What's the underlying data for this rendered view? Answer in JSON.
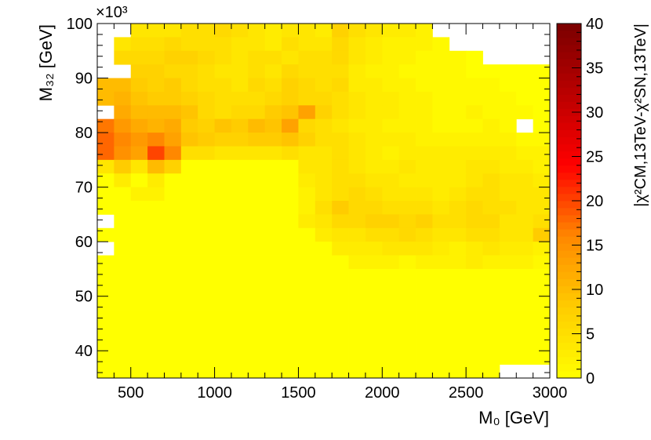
{
  "chart_data": {
    "type": "heatmap",
    "xlabel": "M₀ [GeV]",
    "ylabel": "M₃₂ [GeV]",
    "colorbar_label": "|χ²CM,13TeV-χ²SN,13TeV|",
    "y_multiplier_label": "×10³",
    "x_range": [
      300,
      3000
    ],
    "y_range": [
      35000,
      100000
    ],
    "x_ticks": [
      500,
      1000,
      1500,
      2000,
      2500,
      3000
    ],
    "x_tick_labels": [
      "500",
      "1000",
      "1500",
      "2000",
      "2500",
      "3000"
    ],
    "y_ticks": [
      40000,
      50000,
      60000,
      70000,
      80000,
      90000,
      100000
    ],
    "y_tick_labels": [
      "40",
      "50",
      "60",
      "70",
      "80",
      "90",
      "100"
    ],
    "z_range": [
      0,
      40
    ],
    "z_ticks": [
      0,
      5,
      10,
      15,
      20,
      25,
      30,
      35,
      40
    ],
    "z_tick_labels": [
      "0",
      "5",
      "10",
      "15",
      "20",
      "25",
      "30",
      "35",
      "40"
    ],
    "colormap_stops": [
      "#ffff00",
      "#ffcc00",
      "#ff8800",
      "#ff0000",
      "#bb0000",
      "#7a0000"
    ],
    "x_bin_edges": [
      300,
      400,
      500,
      600,
      700,
      800,
      900,
      1000,
      1100,
      1200,
      1300,
      1400,
      1500,
      1600,
      1700,
      1800,
      1900,
      2000,
      2100,
      2200,
      2300,
      2400,
      2500,
      2600,
      2700,
      2800,
      2900,
      3000
    ],
    "y_bin_edges": [
      35000,
      37500,
      40000,
      42500,
      45000,
      47500,
      50000,
      52500,
      55000,
      57500,
      60000,
      62500,
      65000,
      67500,
      70000,
      72500,
      75000,
      77500,
      80000,
      82500,
      85000,
      87500,
      90000,
      92500,
      95000,
      97500,
      100000
    ],
    "z_rows_top_to_bottom": [
      [
        null,
        null,
        4,
        4,
        4,
        5,
        5,
        6,
        5,
        4,
        3,
        4,
        4,
        3,
        7,
        5,
        4,
        3,
        3,
        2,
        null,
        null,
        null,
        null,
        null,
        null,
        null
      ],
      [
        null,
        4,
        5,
        5,
        6,
        5,
        5,
        5,
        4,
        4,
        3,
        5,
        4,
        4,
        6,
        4,
        3,
        2,
        2,
        2,
        1,
        null,
        null,
        null,
        null,
        null,
        null
      ],
      [
        null,
        6,
        6,
        6,
        7,
        7,
        6,
        5,
        4,
        5,
        5,
        4,
        5,
        5,
        6,
        4,
        3,
        2,
        2,
        1,
        1,
        1,
        0,
        null,
        null,
        null,
        null
      ],
      [
        null,
        null,
        7,
        7,
        6,
        6,
        5,
        4,
        4,
        5,
        4,
        6,
        5,
        5,
        5,
        3,
        2,
        2,
        1,
        1,
        1,
        1,
        0,
        0,
        0,
        0,
        0
      ],
      [
        10,
        10,
        8,
        7,
        8,
        6,
        5,
        5,
        4,
        6,
        5,
        7,
        6,
        5,
        6,
        3,
        3,
        2,
        2,
        1,
        1,
        1,
        1,
        1,
        0,
        0,
        0
      ],
      [
        10,
        11,
        9,
        8,
        8,
        7,
        6,
        5,
        5,
        5,
        6,
        7,
        6,
        6,
        5,
        4,
        3,
        3,
        2,
        2,
        1,
        1,
        1,
        1,
        1,
        0,
        0
      ],
      [
        null,
        12,
        10,
        10,
        10,
        9,
        6,
        5,
        6,
        6,
        8,
        9,
        13,
        7,
        5,
        4,
        3,
        3,
        2,
        2,
        1,
        1,
        2,
        1,
        1,
        1,
        0
      ],
      [
        17,
        14,
        12,
        11,
        12,
        8,
        7,
        9,
        8,
        10,
        9,
        13,
        6,
        5,
        4,
        3,
        3,
        2,
        2,
        2,
        1,
        1,
        1,
        2,
        1,
        null,
        0
      ],
      [
        18,
        16,
        14,
        16,
        13,
        9,
        8,
        7,
        7,
        8,
        8,
        9,
        7,
        5,
        5,
        4,
        3,
        3,
        3,
        2,
        2,
        2,
        2,
        2,
        2,
        1,
        1
      ],
      [
        18,
        15,
        13,
        20,
        16,
        5,
        5,
        4,
        4,
        4,
        4,
        5,
        4,
        4,
        5,
        4,
        3,
        2,
        3,
        3,
        3,
        3,
        3,
        3,
        3,
        2,
        2
      ],
      [
        4,
        8,
        4,
        10,
        7,
        0,
        0,
        0,
        0,
        0,
        0,
        0,
        4,
        4,
        5,
        4,
        3,
        3,
        4,
        3,
        3,
        3,
        4,
        4,
        3,
        3,
        2
      ],
      [
        0,
        3,
        0,
        3,
        0,
        0,
        0,
        0,
        0,
        0,
        0,
        0,
        3,
        4,
        5,
        5,
        4,
        4,
        3,
        3,
        3,
        3,
        4,
        5,
        4,
        4,
        3
      ],
      [
        0,
        0,
        2,
        2,
        0,
        0,
        0,
        0,
        0,
        0,
        0,
        0,
        2,
        4,
        5,
        6,
        5,
        4,
        4,
        4,
        3,
        4,
        5,
        5,
        4,
        4,
        4
      ],
      [
        0,
        0,
        0,
        0,
        0,
        0,
        0,
        0,
        0,
        0,
        0,
        0,
        2,
        5,
        8,
        6,
        6,
        5,
        5,
        5,
        4,
        5,
        6,
        5,
        5,
        4,
        4
      ],
      [
        null,
        0,
        0,
        0,
        0,
        0,
        0,
        0,
        0,
        0,
        0,
        0,
        3,
        4,
        6,
        6,
        7,
        7,
        6,
        7,
        5,
        5,
        6,
        6,
        4,
        4,
        5
      ],
      [
        0,
        0,
        0,
        0,
        0,
        0,
        0,
        0,
        0,
        0,
        0,
        0,
        0,
        3,
        4,
        4,
        5,
        5,
        6,
        5,
        4,
        4,
        5,
        5,
        4,
        4,
        8
      ],
      [
        null,
        0,
        0,
        0,
        0,
        0,
        0,
        0,
        0,
        0,
        0,
        0,
        0,
        0,
        3,
        3,
        3,
        4,
        4,
        4,
        3,
        2,
        3,
        4,
        3,
        3,
        2
      ],
      [
        0,
        0,
        0,
        0,
        0,
        0,
        0,
        0,
        0,
        0,
        0,
        0,
        0,
        0,
        0,
        2,
        2,
        2,
        1,
        2,
        2,
        2,
        3,
        2,
        2,
        2,
        1
      ],
      [
        0,
        0,
        0,
        0,
        0,
        0,
        0,
        0,
        0,
        0,
        0,
        0,
        0,
        0,
        0,
        0,
        0,
        0,
        0,
        0,
        0,
        0,
        0,
        0,
        0,
        0,
        0
      ],
      [
        0,
        0,
        0,
        0,
        0,
        0,
        0,
        0,
        0,
        0,
        0,
        0,
        0,
        0,
        0,
        0,
        0,
        0,
        0,
        0,
        0,
        0,
        0,
        0,
        0,
        0,
        0
      ],
      [
        0,
        0,
        0,
        0,
        0,
        0,
        0,
        0,
        0,
        0,
        0,
        0,
        0,
        0,
        0,
        0,
        0,
        0,
        0,
        0,
        0,
        0,
        0,
        0,
        0,
        0,
        0
      ],
      [
        0,
        0,
        0,
        0,
        0,
        0,
        0,
        0,
        0,
        0,
        0,
        0,
        0,
        0,
        0,
        0,
        0,
        0,
        0,
        0,
        0,
        0,
        0,
        0,
        0,
        0,
        0
      ],
      [
        0,
        0,
        0,
        0,
        0,
        0,
        0,
        0,
        0,
        0,
        0,
        0,
        0,
        0,
        0,
        0,
        0,
        0,
        0,
        0,
        0,
        0,
        0,
        0,
        0,
        0,
        0
      ],
      [
        0,
        0,
        0,
        0,
        0,
        0,
        0,
        0,
        0,
        0,
        0,
        0,
        0,
        0,
        0,
        0,
        0,
        0,
        0,
        0,
        0,
        0,
        0,
        0,
        0,
        0,
        0
      ],
      [
        0,
        0,
        0,
        0,
        0,
        0,
        0,
        0,
        0,
        0,
        0,
        0,
        0,
        0,
        0,
        0,
        0,
        0,
        0,
        0,
        0,
        0,
        0,
        0,
        0,
        0,
        0
      ],
      [
        0,
        0,
        0,
        0,
        0,
        0,
        0,
        0,
        0,
        0,
        0,
        0,
        0,
        0,
        0,
        0,
        0,
        0,
        0,
        0,
        0,
        0,
        0,
        0,
        null,
        null,
        null
      ]
    ]
  }
}
